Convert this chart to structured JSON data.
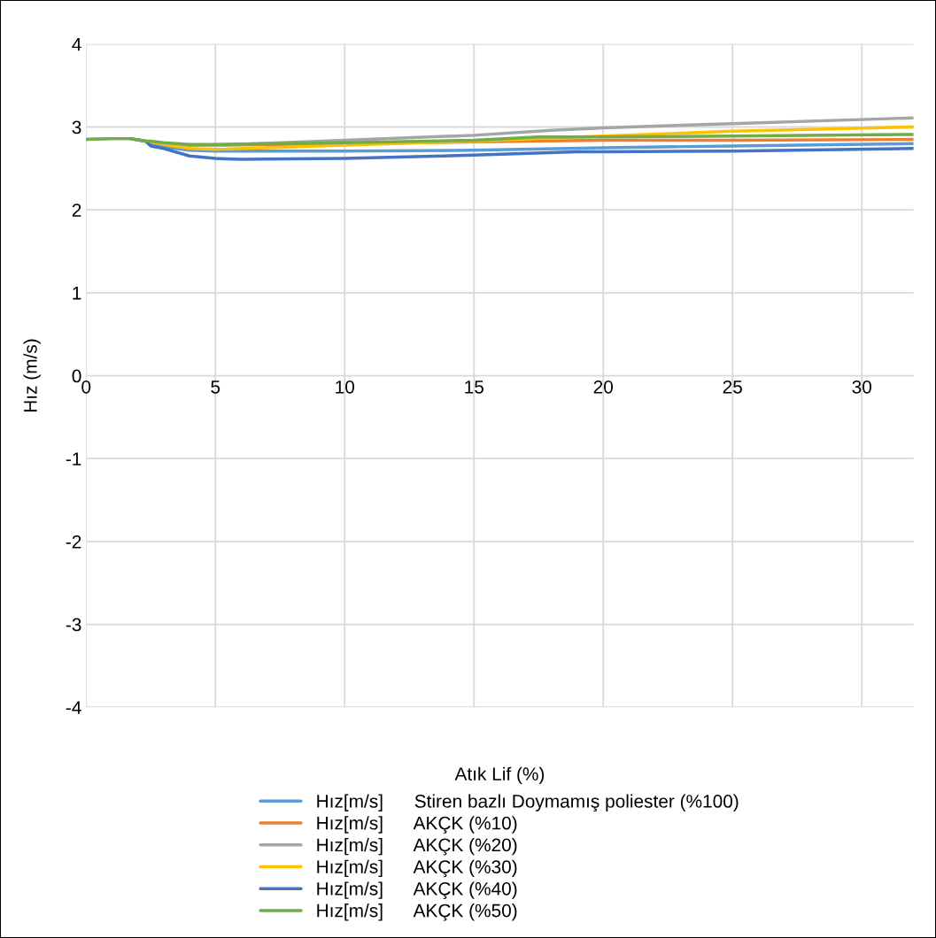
{
  "chart_data": {
    "type": "line",
    "xlabel": "Atık Lif (%)",
    "ylabel": "Hız (m/s)",
    "xlim": [
      0,
      32
    ],
    "xticks": [
      0,
      5,
      10,
      15,
      20,
      25,
      30
    ],
    "ylim": [
      -4,
      4
    ],
    "yticks": [
      -4,
      -3,
      -2,
      -1,
      0,
      1,
      2,
      3,
      4
    ],
    "grid": true,
    "legend": "bottom",
    "marker": "none",
    "line_style": "solid",
    "series": [
      {
        "name": "Hız[m/s]      Stiren bazlı Doymamış poliester (%100)",
        "color": "#5b9bd5",
        "x": [
          1.7,
          2.3,
          2.5,
          3,
          4,
          5,
          10,
          15,
          20,
          25,
          32
        ],
        "values": [
          2.86,
          2.83,
          2.8,
          2.76,
          2.72,
          2.71,
          2.71,
          2.72,
          2.75,
          2.77,
          2.8
        ]
      },
      {
        "name": "Hız[m/s]      AKÇK (%10)",
        "color": "#ed7d31",
        "x": [
          3,
          4,
          5,
          10,
          15,
          20,
          25,
          32
        ],
        "values": [
          2.8,
          2.78,
          2.78,
          2.8,
          2.82,
          2.84,
          2.84,
          2.85
        ]
      },
      {
        "name": "Hız[m/s]      AKÇK (%20)",
        "color": "#a5a5a5",
        "x": [
          0,
          1,
          1.7,
          2.3,
          2.5,
          3,
          4,
          5,
          10,
          15,
          18,
          20,
          25,
          32
        ],
        "values": [
          2.85,
          2.86,
          2.86,
          2.83,
          2.82,
          2.8,
          2.78,
          2.78,
          2.84,
          2.9,
          2.96,
          2.99,
          3.04,
          3.11
        ]
      },
      {
        "name": "Hız[m/s]      AKÇK (%30)",
        "color": "#ffc000",
        "x": [
          2.3,
          2.5,
          3,
          4,
          5,
          10,
          15,
          20,
          25,
          32
        ],
        "values": [
          2.83,
          2.82,
          2.79,
          2.74,
          2.73,
          2.78,
          2.83,
          2.89,
          2.95,
          3.0
        ]
      },
      {
        "name": "Hız[m/s]      AKÇK (%40)",
        "color": "#4472c4",
        "x": [
          1.7,
          2.3,
          2.5,
          3,
          4,
          5,
          6,
          10,
          15,
          19,
          20,
          25,
          32
        ],
        "values": [
          2.86,
          2.83,
          2.77,
          2.74,
          2.65,
          2.62,
          2.61,
          2.62,
          2.66,
          2.7,
          2.7,
          2.71,
          2.74
        ]
      },
      {
        "name": "Hız[m/s]      AKÇK (%50)",
        "color": "#70ad47",
        "x": [
          0,
          1,
          1.7,
          2.3,
          2.5,
          3,
          4,
          5,
          10,
          15,
          17.5,
          20,
          25,
          32
        ],
        "values": [
          2.85,
          2.86,
          2.86,
          2.83,
          2.83,
          2.81,
          2.79,
          2.79,
          2.81,
          2.84,
          2.88,
          2.88,
          2.89,
          2.91
        ]
      }
    ]
  }
}
